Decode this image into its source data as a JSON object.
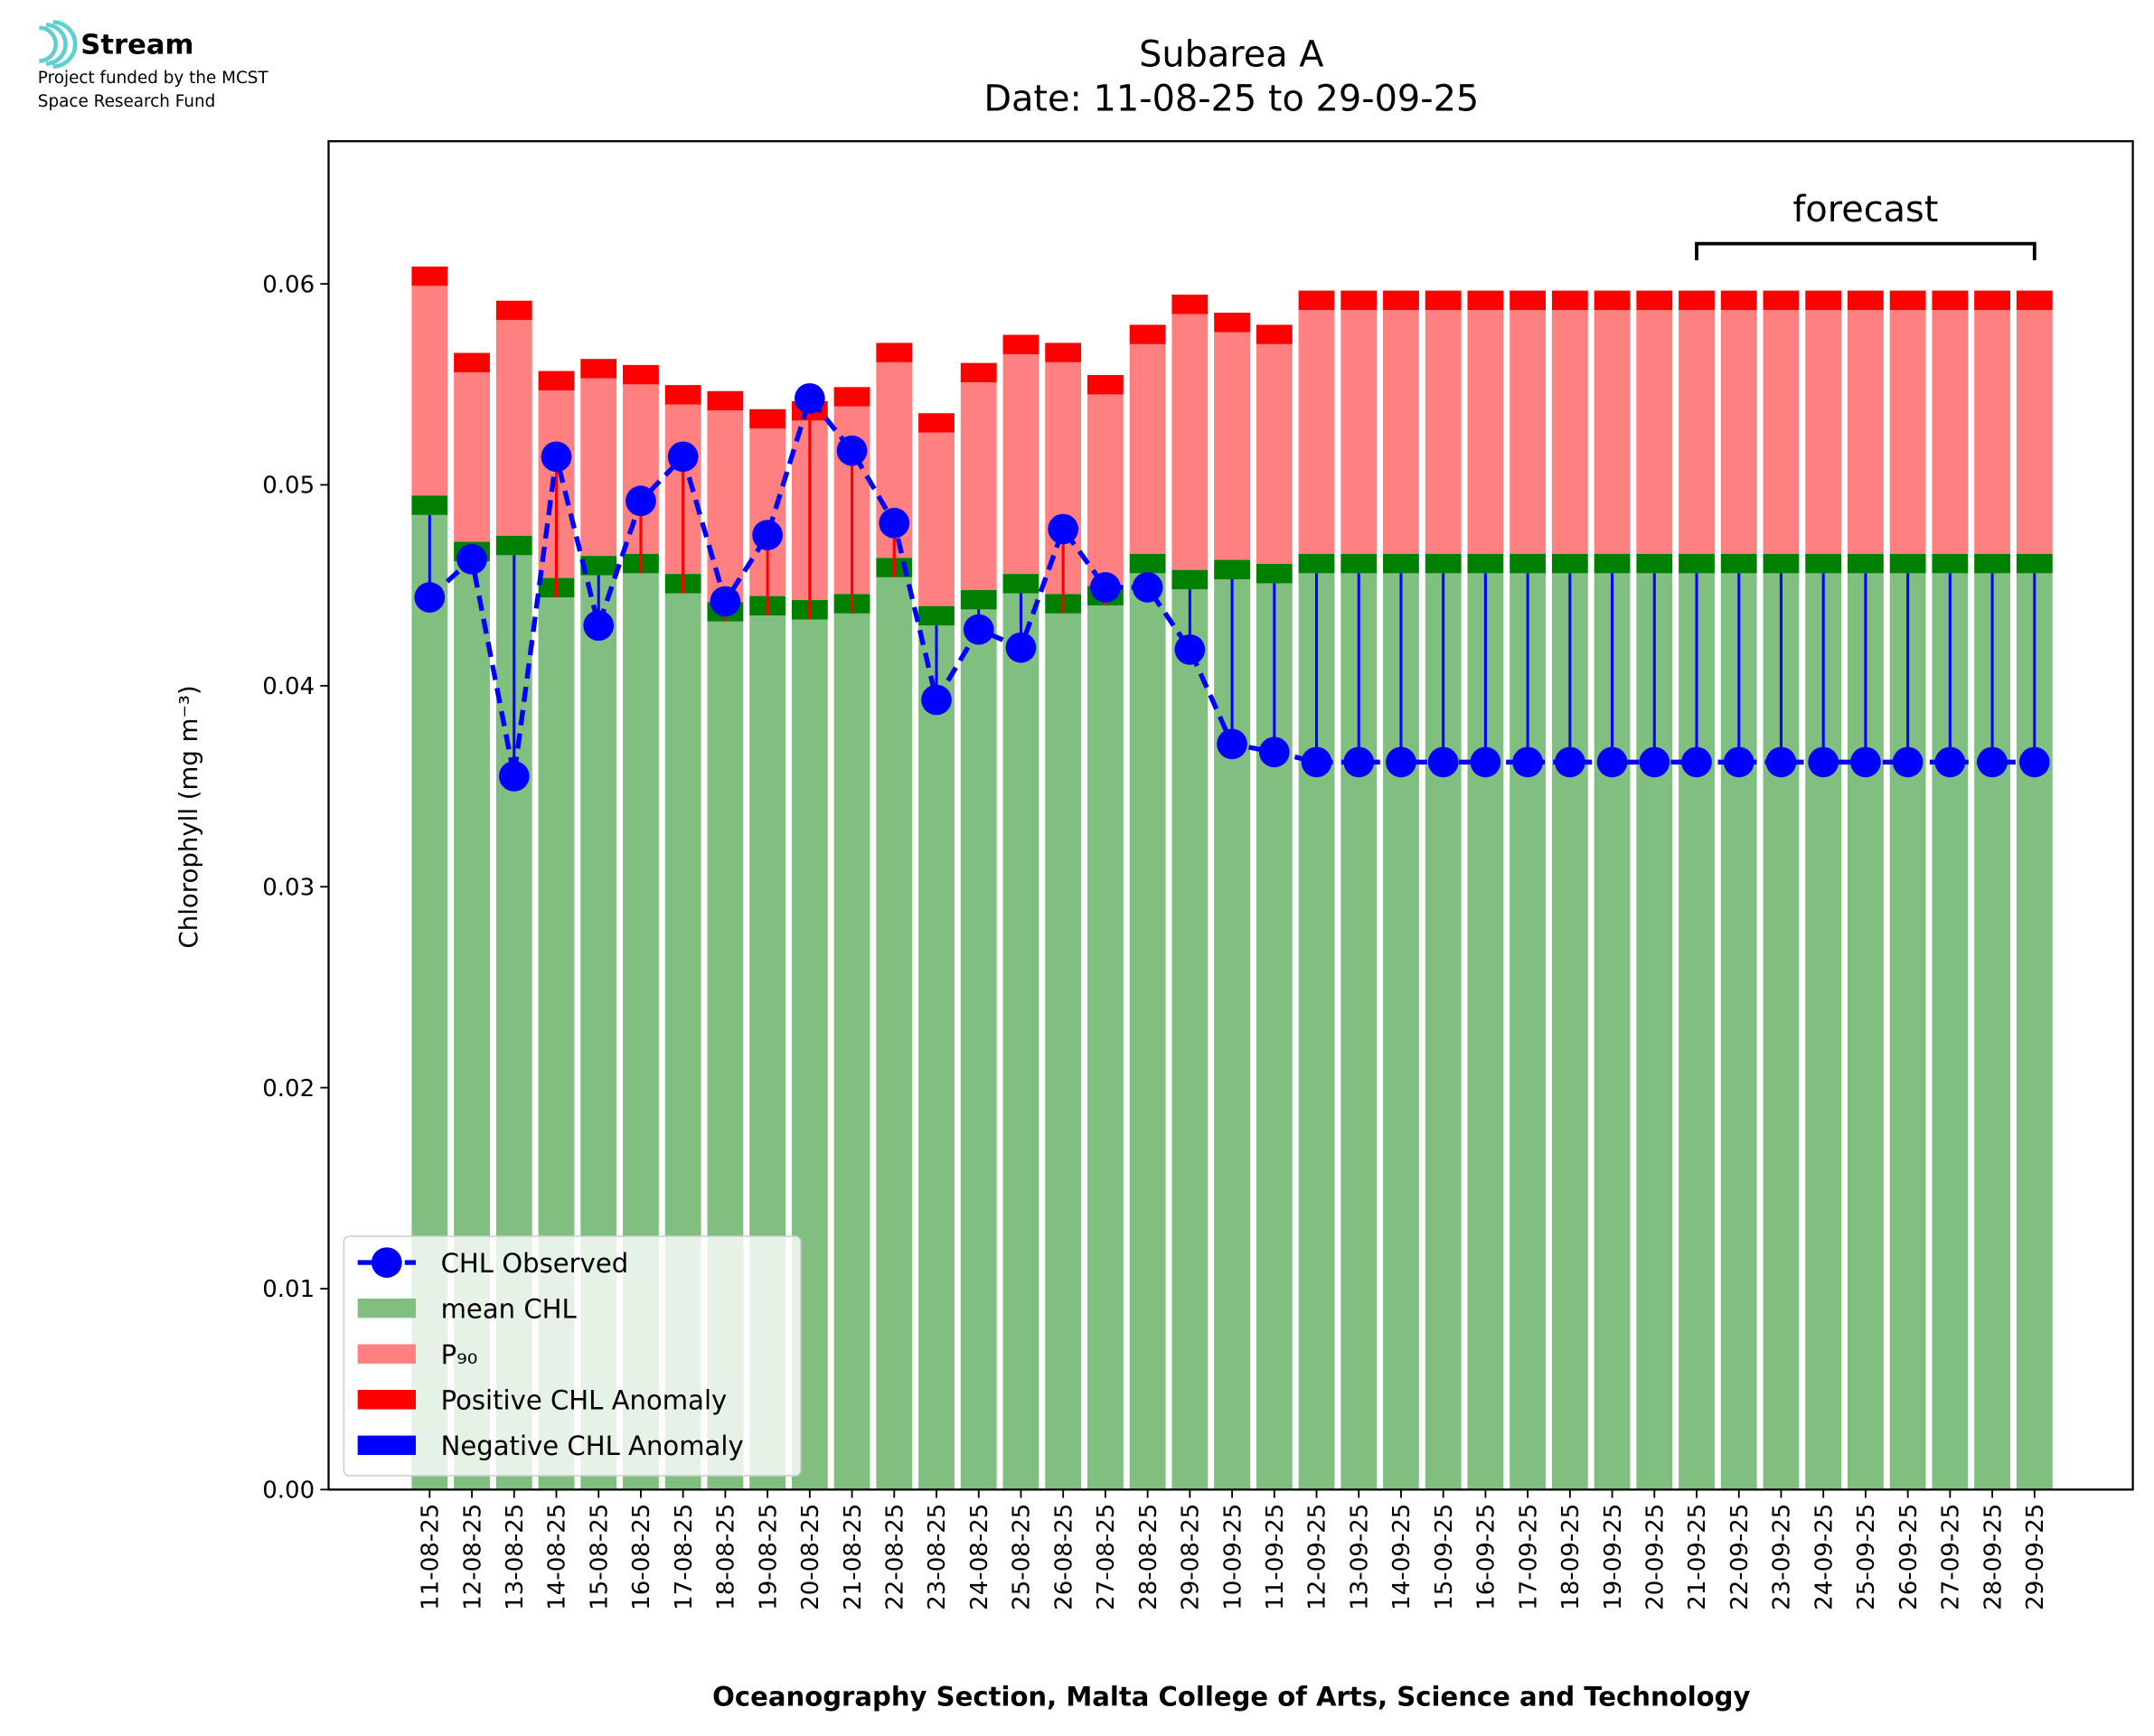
{
  "logo": {
    "name": "Stream",
    "line1": "Project funded by the MCST",
    "line2": "Space Research Fund"
  },
  "chart_data": {
    "type": "bar",
    "title": "Subarea A",
    "subtitle": "Date: 11-08-25 to 29-09-25",
    "xlabel": "Oceanography Section, Malta College of Arts, Science and Technology",
    "ylabel": "Chlorophyll (mg m⁻³)",
    "annotation": "forecast",
    "categories": [
      "11-08-25",
      "12-08-25",
      "13-08-25",
      "14-08-25",
      "15-08-25",
      "16-08-25",
      "17-08-25",
      "18-08-25",
      "19-08-25",
      "20-08-25",
      "21-08-25",
      "22-08-25",
      "23-08-25",
      "24-08-25",
      "25-08-25",
      "26-08-25",
      "27-08-25",
      "28-08-25",
      "29-08-25",
      "10-09-25",
      "11-09-25",
      "12-09-25",
      "13-09-25",
      "14-09-25",
      "15-09-25",
      "16-09-25",
      "17-09-25",
      "18-09-25",
      "19-09-25",
      "20-09-25",
      "21-09-25",
      "22-09-25",
      "23-09-25",
      "24-09-25",
      "25-09-25",
      "26-09-25",
      "27-09-25",
      "28-09-25",
      "29-09-25"
    ],
    "series": [
      {
        "name": "CHL Observed",
        "color": "#0000ff",
        "values": [
          0.0444,
          0.0463,
          0.0355,
          0.0514,
          0.043,
          0.0492,
          0.0514,
          0.0442,
          0.0475,
          0.0543,
          0.0517,
          0.0481,
          0.0393,
          0.0428,
          0.0419,
          0.0478,
          0.0449,
          0.0449,
          0.0418,
          0.0371,
          0.0367,
          0.0362,
          0.0362,
          0.0362,
          0.0362,
          0.0362,
          0.0362,
          0.0362,
          0.0362,
          0.0362,
          0.0362,
          0.0362,
          0.0362,
          0.0362,
          0.0362,
          0.0362,
          0.0362,
          0.0362,
          0.0362
        ]
      },
      {
        "name": "mean CHL",
        "color": "#80bf80",
        "band_color": "#008000",
        "values": [
          0.0485,
          0.0462,
          0.0465,
          0.0444,
          0.0455,
          0.0456,
          0.0446,
          0.0432,
          0.0435,
          0.0433,
          0.0436,
          0.0454,
          0.043,
          0.0438,
          0.0446,
          0.0436,
          0.044,
          0.0456,
          0.0448,
          0.0453,
          0.0451,
          0.0456,
          0.0456,
          0.0456,
          0.0456,
          0.0456,
          0.0456,
          0.0456,
          0.0456,
          0.0456,
          0.0456,
          0.0456,
          0.0456,
          0.0456,
          0.0456,
          0.0456,
          0.0456,
          0.0456,
          0.0456
        ]
      },
      {
        "name": "P₉₀",
        "color": "#ff8080",
        "band_color": "#ff0000",
        "values": [
          0.0599,
          0.0556,
          0.0582,
          0.0547,
          0.0553,
          0.055,
          0.054,
          0.0537,
          0.0528,
          0.0532,
          0.0539,
          0.0561,
          0.0526,
          0.0551,
          0.0565,
          0.0561,
          0.0545,
          0.057,
          0.0585,
          0.0576,
          0.057,
          0.0587,
          0.0587,
          0.0587,
          0.0587,
          0.0587,
          0.0587,
          0.0587,
          0.0587,
          0.0587,
          0.0587,
          0.0587,
          0.0587,
          0.0587,
          0.0587,
          0.0587,
          0.0587,
          0.0587,
          0.0587
        ]
      }
    ],
    "anomaly_legend": [
      {
        "name": "Positive CHL Anomaly",
        "color": "#ff0000"
      },
      {
        "name": "Negative CHL Anomaly",
        "color": "#0000ff"
      }
    ],
    "ylim": [
      0,
      0.0671
    ],
    "yticks": [
      {
        "value": 0,
        "label": "0.00"
      },
      0.01,
      0.02,
      0.03,
      0.04,
      0.05,
      0.06
    ],
    "legend": "lower left"
  }
}
